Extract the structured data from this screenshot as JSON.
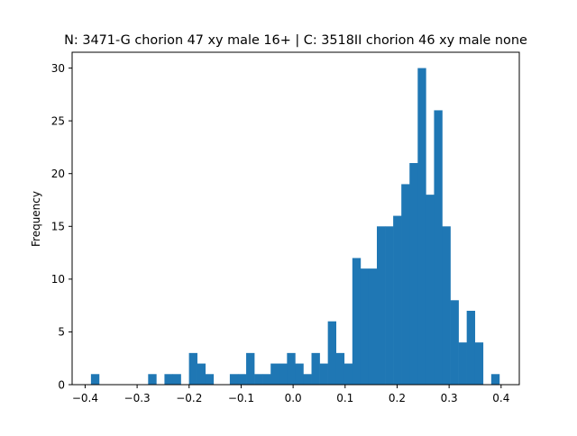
{
  "chart_data": {
    "type": "bar",
    "title": "N: 3471-G chorion 47 xy male 16+ | C: 3518II chorion 46 xy male none",
    "xlabel": "",
    "ylabel": "Frequency",
    "xlim": [
      -0.425,
      0.435
    ],
    "ylim": [
      0,
      31.5
    ],
    "xticks": [
      -0.4,
      -0.3,
      -0.2,
      -0.1,
      0.0,
      0.1,
      0.2,
      0.3,
      0.4
    ],
    "xtick_labels": [
      "−0.4",
      "−0.3",
      "−0.2",
      "−0.1",
      "0.0",
      "0.1",
      "0.2",
      "0.3",
      "0.4"
    ],
    "yticks": [
      0,
      5,
      10,
      15,
      20,
      25,
      30
    ],
    "ytick_labels": [
      "0",
      "5",
      "10",
      "15",
      "20",
      "25",
      "30"
    ],
    "grid": false,
    "legend": "none",
    "bar_color": "#1f77b4",
    "bin_start": -0.3888,
    "bin_width": 0.01571,
    "values": [
      1,
      0,
      0,
      0,
      0,
      0,
      0,
      1,
      0,
      1,
      1,
      0,
      3,
      2,
      1,
      0,
      0,
      1,
      1,
      3,
      1,
      1,
      2,
      2,
      3,
      2,
      1,
      3,
      2,
      6,
      3,
      2,
      12,
      11,
      11,
      15,
      15,
      16,
      19,
      21,
      30,
      18,
      26,
      15,
      8,
      4,
      7,
      4,
      0,
      1
    ]
  }
}
